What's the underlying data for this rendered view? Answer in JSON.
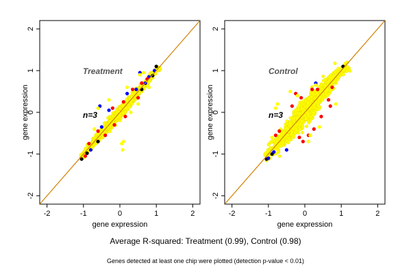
{
  "chart_data": [
    {
      "type": "scatter",
      "title": "Treatment",
      "annotation": "n=3",
      "xlabel": "gene expression",
      "ylabel": "gene expression",
      "xlim": [
        -2.2,
        2.2
      ],
      "ylim": [
        -2.2,
        2.2
      ],
      "xticks": [
        -2,
        -1,
        0,
        1,
        2
      ],
      "yticks": [
        -2,
        -1,
        0,
        1,
        2
      ],
      "grid": false,
      "reference_line": {
        "slope": 1,
        "intercept": 0,
        "color": "#d08000"
      },
      "cloud": {
        "x_min": -1.05,
        "x_max": 1.05,
        "spread": 0.06
      },
      "series": [
        {
          "color": "#000000",
          "points": [
            [
              -1.05,
              -1.12
            ],
            [
              -0.9,
              -0.98
            ],
            [
              -0.6,
              -0.7
            ],
            [
              0.6,
              0.55
            ],
            [
              0.9,
              0.88
            ],
            [
              1.0,
              1.1
            ]
          ]
        },
        {
          "color": "#0000ff",
          "points": [
            [
              -0.5,
              -0.35
            ],
            [
              -0.3,
              0.05
            ],
            [
              -0.55,
              0.15
            ],
            [
              0.45,
              0.55
            ],
            [
              0.55,
              0.95
            ],
            [
              0.8,
              0.85
            ],
            [
              0.95,
              1.0
            ],
            [
              -0.8,
              -0.9
            ],
            [
              0.2,
              0.45
            ],
            [
              0.7,
              0.7
            ]
          ]
        },
        {
          "color": "#ff0000",
          "points": [
            [
              -0.6,
              -0.45
            ],
            [
              -0.85,
              -0.75
            ],
            [
              -0.2,
              0.1
            ],
            [
              0.15,
              -0.1
            ],
            [
              0.35,
              0.55
            ],
            [
              0.6,
              0.7
            ],
            [
              -0.4,
              -0.55
            ],
            [
              0.75,
              0.8
            ],
            [
              -0.95,
              -1.05
            ],
            [
              0.1,
              0.25
            ],
            [
              -0.15,
              -0.3
            ],
            [
              0.5,
              0.35
            ]
          ]
        },
        {
          "color": "#ffff00",
          "points": [
            [
              0.1,
              -0.7
            ],
            [
              0.05,
              -0.75
            ],
            [
              0.08,
              -0.9
            ],
            [
              0.3,
              0.0
            ],
            [
              0.5,
              0.2
            ],
            [
              0.55,
              0.9
            ],
            [
              0.65,
              0.95
            ],
            [
              -0.6,
              0.1
            ],
            [
              -0.7,
              -0.4
            ],
            [
              0.8,
              0.6
            ],
            [
              -0.3,
              0.3
            ],
            [
              0.2,
              0.6
            ]
          ]
        }
      ]
    },
    {
      "type": "scatter",
      "title": "Control",
      "annotation": "n=3",
      "xlabel": "gene expression",
      "ylabel": "gene expression",
      "xlim": [
        -2.2,
        2.2
      ],
      "ylim": [
        -2.2,
        2.2
      ],
      "xticks": [
        -2,
        -1,
        0,
        1,
        2
      ],
      "yticks": [
        -2,
        -1,
        0,
        1,
        2
      ],
      "grid": false,
      "reference_line": {
        "slope": 1,
        "intercept": 0,
        "color": "#d08000"
      },
      "cloud": {
        "x_min": -1.05,
        "x_max": 1.1,
        "spread": 0.13
      },
      "series": [
        {
          "color": "#000000",
          "points": [
            [
              -1.05,
              -1.12
            ],
            [
              -0.9,
              -1.0
            ],
            [
              1.05,
              1.1
            ]
          ]
        },
        {
          "color": "#0000ff",
          "points": [
            [
              -1.0,
              -1.1
            ],
            [
              -0.85,
              -0.95
            ],
            [
              0.3,
              0.7
            ],
            [
              -0.5,
              -0.9
            ]
          ]
        },
        {
          "color": "#ff0000",
          "points": [
            [
              -0.7,
              -0.45
            ],
            [
              -0.25,
              0.45
            ],
            [
              -0.1,
              0.35
            ],
            [
              0.35,
              0.55
            ],
            [
              0.65,
              0.3
            ],
            [
              0.7,
              0.15
            ],
            [
              -0.15,
              -0.6
            ],
            [
              -0.05,
              -0.7
            ],
            [
              0.1,
              -0.55
            ],
            [
              0.75,
              0.6
            ],
            [
              -0.8,
              -0.55
            ],
            [
              0.45,
              -0.1
            ],
            [
              -0.35,
              0.15
            ],
            [
              0.2,
              0.55
            ],
            [
              0.25,
              -0.4
            ]
          ]
        },
        {
          "color": "#ffff00",
          "points": [
            [
              -0.8,
              0.1
            ],
            [
              -0.75,
              0.2
            ],
            [
              0.6,
              0.55
            ],
            [
              0.75,
              0.8
            ],
            [
              0.1,
              -0.7
            ],
            [
              0.15,
              -0.55
            ],
            [
              -0.4,
              0.5
            ],
            [
              0.4,
              -0.35
            ],
            [
              -0.9,
              -0.6
            ],
            [
              0.85,
              0.2
            ],
            [
              -0.2,
              0.4
            ],
            [
              0.3,
              0.65
            ]
          ]
        }
      ]
    }
  ],
  "captions": {
    "main": "Average R-squared: Treatment (0.99), Control (0.98)",
    "sub": "Genes detected at least one chip were plotted (detection p-value < 0.01)"
  }
}
